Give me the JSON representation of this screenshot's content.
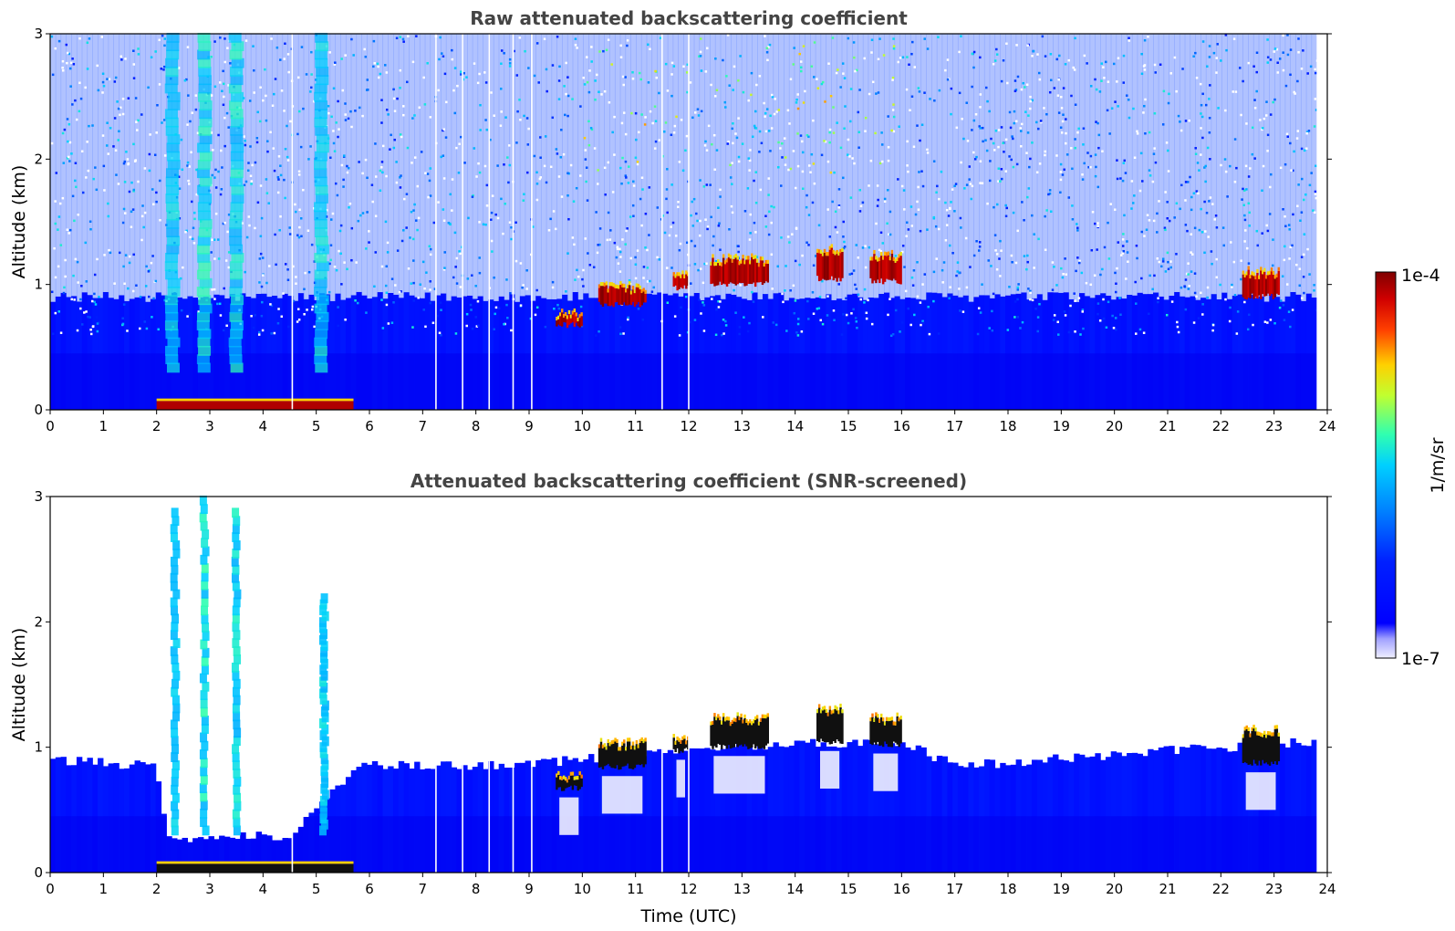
{
  "chart_data": [
    {
      "type": "heatmap",
      "id": "raw",
      "title": "Raw attenuated backscattering coefficient",
      "xlabel": "",
      "ylabel": "Altitude (km)",
      "xlim": [
        0,
        24
      ],
      "ylim": [
        0,
        3
      ],
      "x_ticks": [
        "0",
        "1",
        "2",
        "3",
        "4",
        "5",
        "6",
        "7",
        "8",
        "9",
        "10",
        "11",
        "12",
        "13",
        "14",
        "15",
        "16",
        "17",
        "18",
        "19",
        "20",
        "21",
        "22",
        "23",
        "24"
      ],
      "y_ticks": [
        "0",
        "1",
        "2",
        "3"
      ],
      "data_end_hour": 23.8,
      "boundary_layer_top_km": 0.9,
      "surface_aerosol_layer": {
        "start_hour": 2.0,
        "end_hour": 5.7,
        "altitude_km": [
          0.0,
          0.07
        ]
      },
      "missing_profile_hours": [
        4.55,
        7.25,
        7.75,
        8.25,
        8.7,
        9.05,
        11.5,
        12.0
      ],
      "clouds": [
        {
          "start_hour": 9.5,
          "end_hour": 10.0,
          "base_km": 0.65,
          "top_km": 0.78
        },
        {
          "start_hour": 10.3,
          "end_hour": 11.2,
          "base_km": 0.82,
          "top_km": 1.0
        },
        {
          "start_hour": 11.7,
          "end_hour": 12.0,
          "base_km": 0.95,
          "top_km": 1.1
        },
        {
          "start_hour": 12.4,
          "end_hour": 13.5,
          "base_km": 0.98,
          "top_km": 1.22
        },
        {
          "start_hour": 14.4,
          "end_hour": 14.9,
          "base_km": 1.02,
          "top_km": 1.3
        },
        {
          "start_hour": 15.4,
          "end_hour": 16.0,
          "base_km": 1.0,
          "top_km": 1.25
        },
        {
          "start_hour": 22.4,
          "end_hour": 23.1,
          "base_km": 0.88,
          "top_km": 1.12
        }
      ],
      "aerosol_plumes": [
        {
          "hour": 2.3,
          "top_km": 3.0,
          "intensity": 0.35
        },
        {
          "hour": 2.9,
          "top_km": 3.0,
          "intensity": 0.55
        },
        {
          "hour": 3.5,
          "top_km": 3.0,
          "intensity": 0.5
        },
        {
          "hour": 5.1,
          "top_km": 3.0,
          "intensity": 0.45
        }
      ]
    },
    {
      "type": "heatmap",
      "id": "screened",
      "title": "Attenuated backscattering coefficient (SNR-screened)",
      "xlabel": "Time (UTC)",
      "ylabel": "Altitude (km)",
      "xlim": [
        0,
        24
      ],
      "ylim": [
        0,
        3
      ],
      "x_ticks": [
        "0",
        "1",
        "2",
        "3",
        "4",
        "5",
        "6",
        "7",
        "8",
        "9",
        "10",
        "11",
        "12",
        "13",
        "14",
        "15",
        "16",
        "17",
        "18",
        "19",
        "20",
        "21",
        "22",
        "23",
        "24"
      ],
      "y_ticks": [
        "0",
        "1",
        "2",
        "3"
      ],
      "data_end_hour": 23.8,
      "boundary_layer_top_km": [
        {
          "hour": 0,
          "km": 0.9
        },
        {
          "hour": 2,
          "km": 0.85
        },
        {
          "hour": 2.2,
          "km": 0.25
        },
        {
          "hour": 4.5,
          "km": 0.3
        },
        {
          "hour": 5.8,
          "km": 0.85
        },
        {
          "hour": 8,
          "km": 0.85
        },
        {
          "hour": 10,
          "km": 0.9
        },
        {
          "hour": 12,
          "km": 1.0
        },
        {
          "hour": 16,
          "km": 1.05
        },
        {
          "hour": 17,
          "km": 0.85
        },
        {
          "hour": 22,
          "km": 1.0
        },
        {
          "hour": 23.8,
          "km": 1.05
        }
      ],
      "clouds": [
        {
          "start_hour": 9.5,
          "end_hour": 10.0,
          "base_km": 0.65,
          "top_km": 0.78
        },
        {
          "start_hour": 10.3,
          "end_hour": 11.2,
          "base_km": 0.82,
          "top_km": 1.05
        },
        {
          "start_hour": 11.7,
          "end_hour": 12.0,
          "base_km": 0.95,
          "top_km": 1.1
        },
        {
          "start_hour": 12.4,
          "end_hour": 13.5,
          "base_km": 0.98,
          "top_km": 1.25
        },
        {
          "start_hour": 14.4,
          "end_hour": 14.9,
          "base_km": 1.02,
          "top_km": 1.32
        },
        {
          "start_hour": 15.4,
          "end_hour": 16.0,
          "base_km": 1.0,
          "top_km": 1.25
        },
        {
          "start_hour": 22.4,
          "end_hour": 23.1,
          "base_km": 0.85,
          "top_km": 1.15
        }
      ],
      "aerosol_plumes": [
        {
          "hour": 2.35,
          "top_km": 2.9,
          "intensity": 0.3
        },
        {
          "hour": 2.9,
          "top_km": 3.0,
          "intensity": 0.55
        },
        {
          "hour": 3.5,
          "top_km": 2.9,
          "intensity": 0.45
        },
        {
          "hour": 5.15,
          "top_km": 2.2,
          "intensity": 0.35
        }
      ]
    }
  ],
  "colorbar": {
    "label": "1/m/sr",
    "max_label": "1e-4",
    "min_label": "1e-7",
    "colormap": "jet",
    "colors": [
      "#f0f0ff",
      "#c8c8ff",
      "#a0a0ff",
      "#0000ff",
      "#0000e8",
      "#0040ff",
      "#0080ff",
      "#00c0ff",
      "#00e8d0",
      "#40ff90",
      "#b0ff40",
      "#f0f000",
      "#ffb000",
      "#ff6000",
      "#ff1000",
      "#c00000",
      "#800000"
    ]
  }
}
